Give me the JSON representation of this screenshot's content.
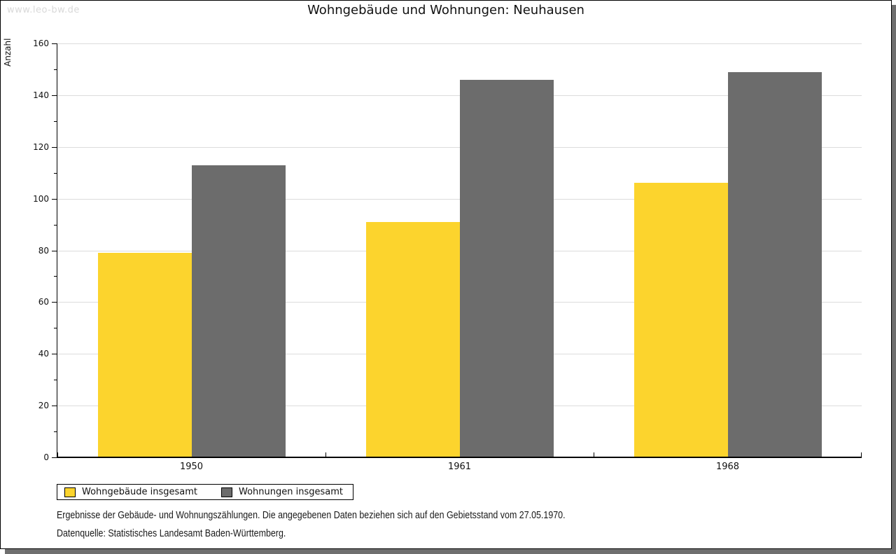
{
  "watermark": "www.leo-bw.de",
  "header": {
    "title": "Wohngebäude und Wohnungen: Neuhausen"
  },
  "chart_data": {
    "type": "bar",
    "title": "Wohngebäude und Wohnungen: Neuhausen",
    "categories": [
      "1950",
      "1961",
      "1968"
    ],
    "series": [
      {
        "name": "Wohngebäude insgesamt",
        "color": "#fcd42d",
        "values": [
          79,
          91,
          106
        ]
      },
      {
        "name": "Wohnungen insgesamt",
        "color": "#6c6c6c",
        "values": [
          113,
          146,
          149
        ]
      }
    ],
    "xlabel": "",
    "ylabel": "Anzahl",
    "ylim": [
      0,
      160
    ],
    "ytick_step": 20,
    "yminor_step": 10,
    "grid": true,
    "legend_position": "bottom-left"
  },
  "footer": {
    "line1": "Ergebnisse der Gebäude- und Wohnungszählungen. Die angegebenen Daten beziehen sich auf den Gebietsstand vom 27.05.1970.",
    "line2": "Datenquelle: Statistisches Landesamt Baden-Württemberg."
  },
  "colors": {
    "grid": "#dcdcdc",
    "axis": "#000000",
    "watermark_text": "#d9d9d9",
    "card_shadow": "#6f6f6f",
    "background": "#ffffff"
  }
}
